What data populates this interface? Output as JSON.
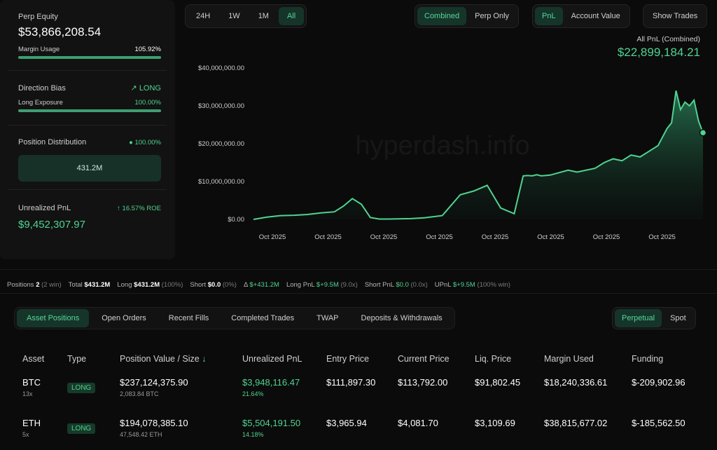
{
  "summary": {
    "perp_equity_label": "Perp Equity",
    "perp_equity_value": "$53,866,208.54",
    "margin_usage_label": "Margin Usage",
    "margin_usage_value": "105.92%",
    "margin_usage_fraction": 1.0,
    "direction_bias_label": "Direction Bias",
    "direction_bias_value": "LONG",
    "long_exposure_label": "Long Exposure",
    "long_exposure_value": "100.00%",
    "long_exposure_fraction": 1.0,
    "position_distribution_label": "Position Distribution",
    "position_distribution_value": "100.00%",
    "position_distribution_amount": "431.2M",
    "unrealized_pnl_label": "Unrealized PnL",
    "unrealized_pnl_roe": "16.57% ROE",
    "unrealized_pnl_value": "$9,452,307.97"
  },
  "time_ranges": [
    {
      "label": "24H",
      "active": false
    },
    {
      "label": "1W",
      "active": false
    },
    {
      "label": "1M",
      "active": false
    },
    {
      "label": "All",
      "active": true
    }
  ],
  "mode_toggle": [
    {
      "label": "Combined",
      "active": true
    },
    {
      "label": "Perp Only",
      "active": false
    }
  ],
  "metric_toggle": [
    {
      "label": "PnL",
      "active": true
    },
    {
      "label": "Account Value",
      "active": false
    }
  ],
  "show_trades_label": "Show Trades",
  "chart_header": {
    "label": "All PnL (Combined)",
    "value": "$22,899,184.21"
  },
  "watermark": "hyperdash.info",
  "chart_data": {
    "type": "area",
    "title": "",
    "xlabel": "",
    "ylabel": "",
    "ylim": [
      0,
      40000000
    ],
    "yticks": [
      "$40,000,000.00",
      "$30,000,000.00",
      "$20,000,000.00",
      "$10,000,000.00",
      "$0.00"
    ],
    "xticks": [
      "Oct 2025",
      "Oct 2025",
      "Oct 2025",
      "Oct 2025",
      "Oct 2025",
      "Oct 2025",
      "Oct 2025",
      "Oct 2025"
    ],
    "x": [
      0,
      3,
      6,
      9,
      12,
      15,
      18,
      20,
      22,
      24,
      26,
      28,
      30,
      32,
      35,
      38,
      42,
      46,
      49,
      52,
      55,
      58,
      60,
      61,
      62,
      63,
      64,
      66,
      70,
      72,
      76,
      78,
      80,
      82,
      84,
      86,
      88,
      90,
      92,
      93,
      94,
      95,
      96,
      97,
      98,
      99,
      100
    ],
    "series": [
      {
        "values": [
          0,
          600000,
          1000000,
          1100000,
          1300000,
          1700000,
          2000000,
          3500000,
          5500000,
          4000000,
          500000,
          100000,
          100000,
          150000,
          200000,
          400000,
          1000000,
          6500000,
          7500000,
          9000000,
          3000000,
          1500000,
          11500000,
          11600000,
          11500000,
          11800000,
          11500000,
          11700000,
          13000000,
          12500000,
          13500000,
          15000000,
          16000000,
          15500000,
          17000000,
          16500000,
          18000000,
          19500000,
          24000000,
          25500000,
          34000000,
          29000000,
          31000000,
          30000000,
          31500000,
          26000000,
          22899184
        ]
      }
    ],
    "color": "#4fd391"
  },
  "stats_bar": {
    "positions_label": "Positions",
    "positions_count": "2",
    "positions_win": "(2 win)",
    "total_label": "Total",
    "total_value": "$431.2M",
    "long_label": "Long",
    "long_value": "$431.2M",
    "long_pct": "(100%)",
    "short_label": "Short",
    "short_value": "$0.0",
    "short_pct": "(0%)",
    "delta_label": "Δ",
    "delta_value": "$+431.2M",
    "long_pnl_label": "Long PnL",
    "long_pnl_value": "$+9.5M",
    "long_pnl_mult": "(9.0x)",
    "short_pnl_label": "Short PnL",
    "short_pnl_value": "$0.0",
    "short_pnl_mult": "(0.0x)",
    "upnl_label": "UPnL",
    "upnl_value": "$+9.5M",
    "upnl_win": "(100% win)"
  },
  "tabs": [
    {
      "label": "Asset Positions",
      "active": true
    },
    {
      "label": "Open Orders",
      "active": false
    },
    {
      "label": "Recent Fills",
      "active": false
    },
    {
      "label": "Completed Trades",
      "active": false
    },
    {
      "label": "TWAP",
      "active": false
    },
    {
      "label": "Deposits & Withdrawals",
      "active": false
    }
  ],
  "market_toggle": [
    {
      "label": "Perpetual",
      "active": true
    },
    {
      "label": "Spot",
      "active": false
    }
  ],
  "table": {
    "headers": [
      "Asset",
      "Type",
      "Position Value / Size",
      "Unrealized PnL",
      "Entry Price",
      "Current Price",
      "Liq. Price",
      "Margin Used",
      "Funding"
    ],
    "sort_indicator": "↓",
    "rows": [
      {
        "asset": "BTC",
        "leverage": "13x",
        "type": "LONG",
        "value": "$237,124,375.90",
        "size": "2,083.84 BTC",
        "upnl": "$3,948,116.47",
        "upnl_pct": "21.64%",
        "entry": "$111,897.30",
        "current": "$113,792.00",
        "liq": "$91,802.45",
        "margin": "$18,240,336.61",
        "funding": "$-209,902.96"
      },
      {
        "asset": "ETH",
        "leverage": "5x",
        "type": "LONG",
        "value": "$194,078,385.10",
        "size": "47,548.42 ETH",
        "upnl": "$5,504,191.50",
        "upnl_pct": "14.18%",
        "entry": "$3,965.94",
        "current": "$4,081.70",
        "liq": "$3,109.69",
        "margin": "$38,815,677.02",
        "funding": "$-185,562.50"
      }
    ]
  }
}
